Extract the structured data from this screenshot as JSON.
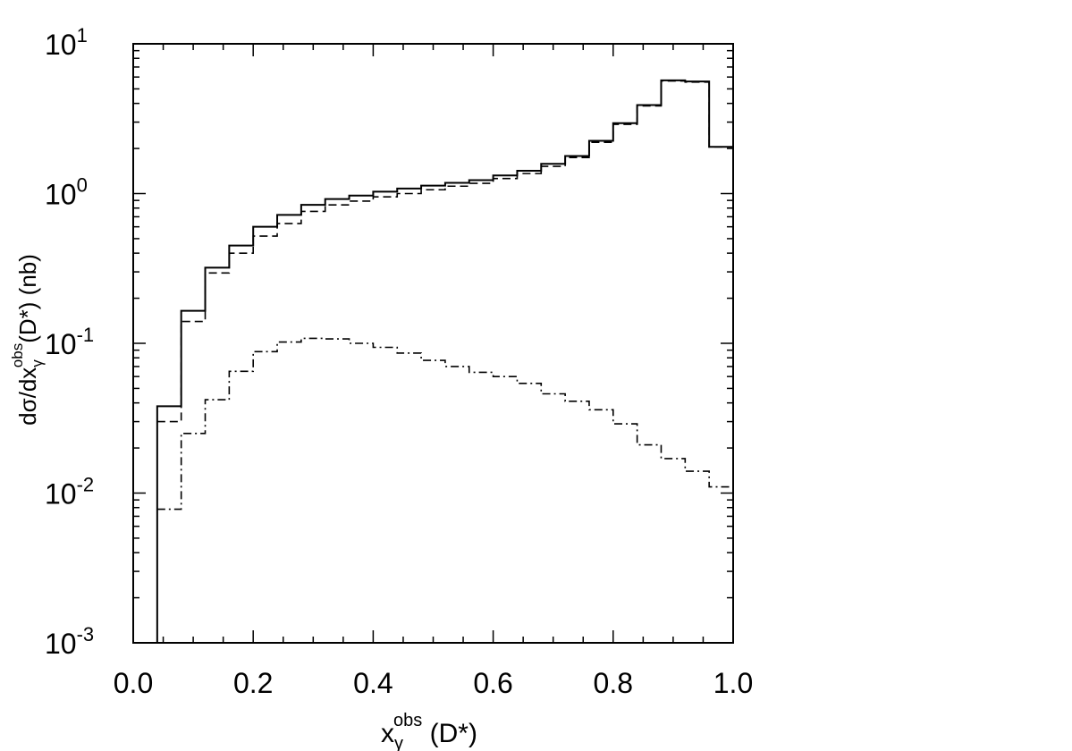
{
  "chart_data": {
    "type": "line",
    "step": true,
    "title": "",
    "xlabel": {
      "main": "x",
      "sub": "γ",
      "sup": "obs",
      "suffix": " (D*)"
    },
    "ylabel": {
      "pre": "dσ/dx",
      "sub": "γ",
      "sup": "obs",
      "suffix": "(D*) (nb)"
    },
    "xlim": [
      0.0,
      1.0
    ],
    "ylim": [
      0.001,
      10
    ],
    "yscale": "log",
    "x_ticks": [
      "0.0",
      "0.2",
      "0.4",
      "0.6",
      "0.8",
      "1.0"
    ],
    "y_ticks": [
      {
        "base": "10",
        "exp": "-3"
      },
      {
        "base": "10",
        "exp": "-2"
      },
      {
        "base": "10",
        "exp": "-1"
      },
      {
        "base": "10",
        "exp": "0"
      },
      {
        "base": "10",
        "exp": "1"
      }
    ],
    "legend": "none",
    "grid": false,
    "bin_edges": [
      0.04,
      0.08,
      0.12,
      0.16,
      0.2,
      0.24,
      0.28,
      0.32,
      0.36,
      0.4,
      0.44,
      0.48,
      0.52,
      0.56,
      0.6,
      0.64,
      0.68,
      0.72,
      0.76,
      0.8,
      0.84,
      0.88,
      0.92,
      0.96,
      1.0
    ],
    "series": [
      {
        "style": "solid",
        "values": [
          0.038,
          0.165,
          0.32,
          0.45,
          0.6,
          0.72,
          0.84,
          0.92,
          0.97,
          1.03,
          1.08,
          1.13,
          1.18,
          1.23,
          1.32,
          1.42,
          1.58,
          1.78,
          2.25,
          2.95,
          3.9,
          5.7,
          5.6,
          2.05
        ]
      },
      {
        "style": "dashed",
        "values": [
          0.03,
          0.14,
          0.295,
          0.4,
          0.52,
          0.63,
          0.76,
          0.84,
          0.89,
          0.95,
          1.0,
          1.06,
          1.12,
          1.17,
          1.26,
          1.36,
          1.52,
          1.74,
          2.2,
          2.9,
          3.85,
          5.65,
          5.55,
          2.05
        ]
      },
      {
        "style": "dash-dot",
        "values": [
          0.0078,
          0.025,
          0.042,
          0.065,
          0.088,
          0.102,
          0.108,
          0.107,
          0.1,
          0.094,
          0.086,
          0.077,
          0.07,
          0.064,
          0.06,
          0.054,
          0.046,
          0.041,
          0.036,
          0.029,
          0.021,
          0.017,
          0.014,
          0.011
        ]
      }
    ]
  }
}
